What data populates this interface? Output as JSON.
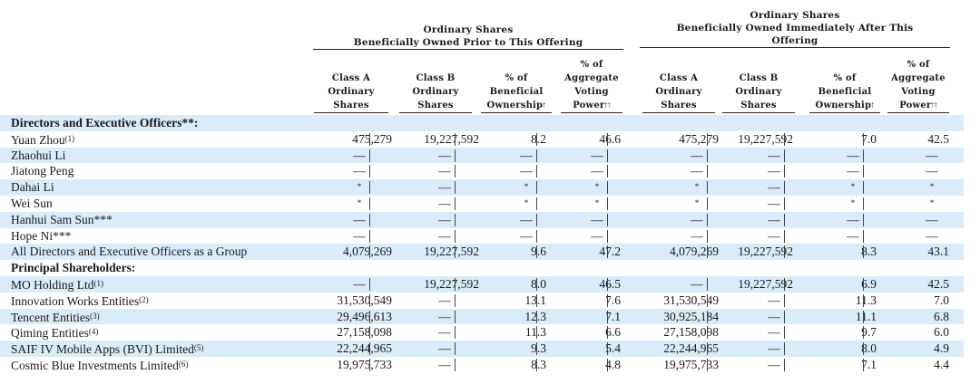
{
  "headers": {
    "group_prior": "Ordinary Shares\nBeneficially Owned Prior to This Offering",
    "group_after": "Ordinary Shares\nBeneficially Owned Immediately After This\nOffering",
    "prior_cols": [
      "Class A\nOrdinary\nShares",
      "Class B\nOrdinary\nShares",
      "% of\nBeneficial\nOwnership",
      "% of\nAggregate\nVoting\nPower"
    ],
    "after_cols": [
      "Class A\nOrdinary\nShares",
      "Class B\nOrdinary\nShares",
      "% of\nBeneficial\nOwnership",
      "% of\nAggregate\nVoting\nPower"
    ],
    "ownership_mark": "†",
    "voting_mark": "††"
  },
  "rows": [
    {
      "type": "section",
      "label": "Directors and Executive Officers**:",
      "shaded": true
    },
    {
      "type": "data",
      "label": "Yuan Zhou",
      "note": "(1)",
      "shaded": false,
      "values": [
        "475,279",
        "19,227,592",
        "8.2",
        "46.6",
        "475,279",
        "19,227,592",
        "7.0",
        "42.5"
      ]
    },
    {
      "type": "data",
      "label": "Zhaohui Li",
      "note": "",
      "shaded": true,
      "values": [
        "—",
        "—",
        "—",
        "—",
        "—",
        "—",
        "—",
        "—"
      ]
    },
    {
      "type": "data",
      "label": "Jiatong Peng",
      "note": "",
      "shaded": false,
      "values": [
        "—",
        "—",
        "—",
        "—",
        "—",
        "—",
        "—",
        "—"
      ]
    },
    {
      "type": "data",
      "label": "Dahai Li",
      "note": "",
      "shaded": true,
      "values": [
        "*",
        "—",
        "*",
        "*",
        "*",
        "—",
        "*",
        "*"
      ]
    },
    {
      "type": "data",
      "label": "Wei Sun",
      "note": "",
      "shaded": false,
      "values": [
        "*",
        "—",
        "*",
        "*",
        "*",
        "—",
        "*",
        "*"
      ]
    },
    {
      "type": "data",
      "label": "Hanhui Sam Sun***",
      "note": "",
      "shaded": true,
      "values": [
        "—",
        "—",
        "—",
        "—",
        "—",
        "—",
        "—",
        "—"
      ]
    },
    {
      "type": "data",
      "label": "Hope Ni***",
      "note": "",
      "shaded": false,
      "values": [
        "—",
        "—",
        "—",
        "—",
        "—",
        "—",
        "—",
        "—"
      ]
    },
    {
      "type": "data",
      "label": "All Directors and Executive Officers as a Group",
      "note": "",
      "shaded": true,
      "values": [
        "4,079,269",
        "19,227,592",
        "9.6",
        "47.2",
        "4,079,269",
        "19,227,592",
        "8.3",
        "43.1"
      ]
    },
    {
      "type": "section",
      "label": "Principal Shareholders:",
      "shaded": false
    },
    {
      "type": "data",
      "label": "MO Holding Ltd",
      "note": "(1)",
      "shaded": true,
      "values": [
        "—",
        "19,227,592",
        "8.0",
        "46.5",
        "—",
        "19,227,592",
        "6.9",
        "42.5"
      ]
    },
    {
      "type": "data",
      "label": "Innovation Works Entities",
      "note": "(2)",
      "shaded": false,
      "values": [
        "31,530,549",
        "—",
        "13.1",
        "7.6",
        "31,530,549",
        "—",
        "11.3",
        "7.0"
      ]
    },
    {
      "type": "data",
      "label": "Tencent Entities",
      "note": "(3)",
      "shaded": true,
      "values": [
        "29,496,613",
        "—",
        "12.3",
        "7.1",
        "30,925,184",
        "—",
        "11.1",
        "6.8"
      ]
    },
    {
      "type": "data",
      "label": "Qiming Entities",
      "note": "(4)",
      "shaded": false,
      "values": [
        "27,158,098",
        "—",
        "11.3",
        "6.6",
        "27,158,098",
        "—",
        "9.7",
        "6.0"
      ]
    },
    {
      "type": "data",
      "label": "SAIF IV Mobile Apps (BVI) Limited",
      "note": "(5)",
      "shaded": true,
      "values": [
        "22,244,965",
        "—",
        "9.3",
        "5.4",
        "22,244,965",
        "—",
        "8.0",
        "4.9"
      ]
    },
    {
      "type": "data",
      "label": "Cosmic Blue Investments Limited",
      "note": "(6)",
      "shaded": false,
      "values": [
        "19,975,733",
        "—",
        "8.3",
        "4.8",
        "19,975,733",
        "—",
        "7.1",
        "4.4"
      ]
    }
  ]
}
